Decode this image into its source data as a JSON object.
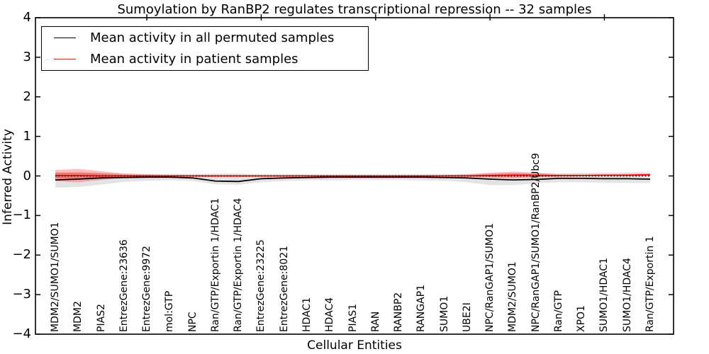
{
  "figure": {
    "title": "Sumoylation by RanBP2 regulates transcriptional repression -- 32 samples",
    "xlabel": "Cellular Entities",
    "ylabel": "Inferred Activity"
  },
  "legend": {
    "items": [
      {
        "name": "permuted",
        "label": "Mean activity in all permuted samples",
        "color": "#000000"
      },
      {
        "name": "patient",
        "label": "Mean activity in patient samples",
        "color": "#ff0000"
      }
    ],
    "position": "upper left"
  },
  "chart_data": {
    "type": "line",
    "title": "Sumoylation by RanBP2 regulates transcriptional repression -- 32 samples",
    "xlabel": "Cellular Entities",
    "ylabel": "Inferred Activity",
    "ylim": [
      -4,
      4
    ],
    "yticks": [
      -4,
      -3,
      -2,
      -1,
      0,
      1,
      2,
      3,
      4
    ],
    "grid": false,
    "legend_position": "upper left",
    "categories": [
      "MDM2/SUMO1/SUMO1",
      "MDM2",
      "PIAS2",
      "EntrezGene:23636",
      "EntrezGene:9972",
      "mol:GTP",
      "NPC",
      "Ran/GTP/Exportin 1/HDAC1",
      "Ran/GTP/Exportin 1/HDAC4",
      "EntrezGene:23225",
      "EntrezGene:8021",
      "HDAC1",
      "HDAC4",
      "PIAS1",
      "RAN",
      "RANBP2",
      "RANGAP1",
      "SUMO1",
      "UBE2I",
      "NPC/RanGAP1/SUMO1",
      "MDM2/SUMO1",
      "NPC/RanGAP1/SUMO1/RanBP2/Ubc9",
      "Ran/GTP",
      "XPO1",
      "SUMO1/HDAC1",
      "SUMO1/HDAC4",
      "Ran/GTP/Exportin 1"
    ],
    "series": [
      {
        "name": "Mean activity in all permuted samples",
        "color": "#000000",
        "values": [
          -0.1,
          -0.08,
          -0.05,
          -0.04,
          -0.03,
          -0.03,
          -0.05,
          -0.13,
          -0.14,
          -0.07,
          -0.05,
          -0.04,
          -0.03,
          -0.03,
          -0.03,
          -0.03,
          -0.03,
          -0.04,
          -0.05,
          -0.08,
          -0.1,
          -0.09,
          -0.06,
          -0.06,
          -0.07,
          -0.07,
          -0.08
        ]
      },
      {
        "name": "Mean activity in patient samples",
        "color": "#ff0000",
        "values": [
          0.01,
          0.01,
          0.0,
          0.0,
          0.0,
          0.0,
          0.0,
          0.0,
          0.0,
          0.0,
          0.0,
          0.0,
          0.0,
          0.0,
          0.0,
          0.0,
          0.0,
          0.0,
          0.0,
          0.01,
          0.02,
          0.02,
          0.01,
          0.01,
          0.02,
          0.02,
          0.03
        ]
      }
    ],
    "bands": [
      {
        "name": "permuted-range",
        "color": "#000000",
        "opacity": 0.11,
        "upper": [
          0.09,
          0.09,
          0.08,
          0.06,
          0.05,
          0.05,
          0.05,
          0.06,
          0.06,
          0.05,
          0.05,
          0.04,
          0.04,
          0.04,
          0.04,
          0.04,
          0.04,
          0.05,
          0.05,
          0.07,
          0.08,
          0.08,
          0.07,
          0.08,
          0.08,
          0.09,
          0.09
        ],
        "lower": [
          -0.3,
          -0.28,
          -0.22,
          -0.15,
          -0.12,
          -0.11,
          -0.13,
          -0.21,
          -0.22,
          -0.16,
          -0.13,
          -0.11,
          -0.11,
          -0.1,
          -0.1,
          -0.1,
          -0.11,
          -0.12,
          -0.16,
          -0.23,
          -0.23,
          -0.19,
          -0.16,
          -0.16,
          -0.17,
          -0.18,
          -0.18
        ]
      },
      {
        "name": "patient-range-outer",
        "color": "#ff0000",
        "opacity": 0.25,
        "upper": [
          0.15,
          0.18,
          0.12,
          0.06,
          0.04,
          0.03,
          0.03,
          0.03,
          0.03,
          0.02,
          0.02,
          0.02,
          0.02,
          0.02,
          0.02,
          0.02,
          0.02,
          0.02,
          0.04,
          0.08,
          0.11,
          0.08,
          0.04,
          0.04,
          0.04,
          0.05,
          0.06
        ],
        "lower": [
          -0.13,
          -0.16,
          -0.1,
          -0.05,
          -0.03,
          -0.02,
          -0.02,
          -0.03,
          -0.03,
          -0.02,
          -0.02,
          -0.02,
          -0.01,
          -0.01,
          -0.01,
          -0.01,
          -0.01,
          -0.02,
          -0.02,
          -0.04,
          -0.06,
          -0.04,
          -0.02,
          -0.01,
          -0.01,
          -0.01,
          0.0
        ]
      },
      {
        "name": "patient-range-inner",
        "color": "#ff0000",
        "opacity": 0.3,
        "upper": [
          0.08,
          0.09,
          0.06,
          0.03,
          0.02,
          0.01,
          0.01,
          0.01,
          0.01,
          0.01,
          0.01,
          0.01,
          0.01,
          0.01,
          0.01,
          0.01,
          0.01,
          0.01,
          0.02,
          0.04,
          0.06,
          0.04,
          0.02,
          0.02,
          0.02,
          0.03,
          0.03
        ],
        "lower": [
          -0.06,
          -0.08,
          -0.05,
          -0.02,
          -0.01,
          -0.01,
          -0.01,
          -0.01,
          -0.01,
          -0.01,
          -0.01,
          -0.01,
          0.0,
          0.0,
          0.0,
          0.0,
          0.0,
          -0.01,
          -0.01,
          -0.02,
          -0.03,
          -0.02,
          -0.01,
          0.0,
          0.0,
          0.0,
          0.01
        ]
      }
    ],
    "zero_line": {
      "y": 0,
      "style": "dotted",
      "color": "#000000"
    }
  }
}
